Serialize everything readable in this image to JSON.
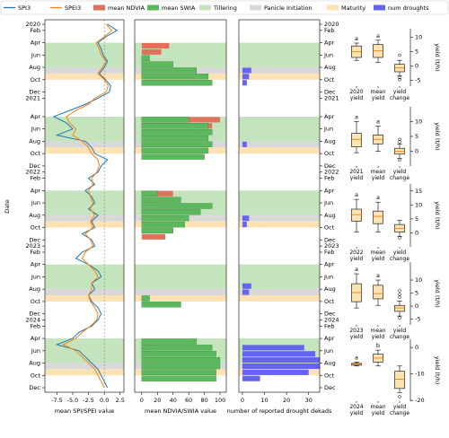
{
  "stages": [
    {
      "name": "Tillering",
      "color": "#c4e4bd",
      "periods": [
        [
          "2020-04",
          "2020-08"
        ],
        [
          "2021-04",
          "2021-08"
        ],
        [
          "2022-04",
          "2022-08"
        ],
        [
          "2023-04",
          "2023-08"
        ],
        [
          "2024-04",
          "2024-08"
        ]
      ]
    },
    {
      "name": "Panicle Initiation",
      "color": "#d8d8d8",
      "periods": [
        [
          "2020-08",
          "2020-09"
        ],
        [
          "2021-08",
          "2021-09"
        ],
        [
          "2022-08",
          "2022-09"
        ],
        [
          "2023-08",
          "2023-09"
        ],
        [
          "2024-08",
          "2024-09"
        ]
      ]
    },
    {
      "name": "Maturity",
      "color": "#fde2b3",
      "periods": [
        [
          "2020-09",
          "2020-10"
        ],
        [
          "2021-09",
          "2021-10"
        ],
        [
          "2022-09",
          "2022-10"
        ],
        [
          "2023-09",
          "2023-10"
        ],
        [
          "2024-09",
          "2024-10"
        ]
      ]
    }
  ],
  "chart_data": [
    {
      "type": "line",
      "x_label": "mean SPI/SPEI value",
      "y_label": "Date",
      "dates": [
        "2020-01",
        "2020-02",
        "2020-03",
        "2020-04",
        "2020-05",
        "2020-06",
        "2020-07",
        "2020-08",
        "2020-09",
        "2020-10",
        "2020-11",
        "2020-12",
        "2021-01",
        "2021-02",
        "2021-03",
        "2021-04",
        "2021-05",
        "2021-06",
        "2021-07",
        "2021-08",
        "2021-09",
        "2021-10",
        "2021-11",
        "2021-12",
        "2022-01",
        "2022-02",
        "2022-03",
        "2022-04",
        "2022-05",
        "2022-06",
        "2022-07",
        "2022-08",
        "2022-09",
        "2022-10",
        "2022-11",
        "2022-12",
        "2023-01",
        "2023-02",
        "2023-03",
        "2023-04",
        "2023-05",
        "2023-06",
        "2023-07",
        "2023-08",
        "2023-09",
        "2023-10",
        "2023-11",
        "2023-12",
        "2024-01",
        "2024-02",
        "2024-03",
        "2024-04",
        "2024-05",
        "2024-06",
        "2024-07",
        "2024-08",
        "2024-09",
        "2024-10",
        "2024-11",
        "2024-12"
      ],
      "series": [
        {
          "name": "SPI3",
          "color": "#1f77b4",
          "values": [
            0.5,
            2.0,
            0.3,
            -1.0,
            -0.5,
            -0.2,
            0.5,
            0,
            -0.8,
            0.2,
            1.0,
            0.8,
            -1.0,
            -3.0,
            -5.5,
            -8.0,
            -6.0,
            -5.0,
            -7.5,
            -3.0,
            -2.0,
            -1.5,
            0.5,
            -0.5,
            -1.0,
            -2.5,
            -1.5,
            -3.0,
            -2.0,
            -1.5,
            -2.5,
            -1.0,
            -2.0,
            -1.5,
            -3.5,
            -2.0,
            -1.5,
            -3.5,
            -4.5,
            -2.5,
            -1.0,
            -0.5,
            -2.0,
            -1.5,
            -2.5,
            -2.0,
            -1.0,
            -0.5,
            -1.0,
            -2.0,
            -4.0,
            -5.0,
            -7.5,
            -4.0,
            -3.0,
            -2.0,
            -1.0,
            -0.5,
            0.0,
            0.5
          ]
        },
        {
          "name": "SPEI3",
          "color": "#ff7f0e",
          "values": [
            0.3,
            1.2,
            0.0,
            -1.3,
            -0.8,
            -0.5,
            0.3,
            -0.3,
            -1.0,
            0.0,
            0.6,
            0.3,
            -1.5,
            -2.5,
            -4.5,
            -6.0,
            -5.5,
            -4.5,
            -5.0,
            -3.5,
            -2.5,
            -2.0,
            -1.0,
            -0.8,
            -1.2,
            -2.0,
            -1.8,
            -2.5,
            -2.2,
            -1.8,
            -2.2,
            -1.5,
            -2.2,
            -1.8,
            -3.0,
            -2.2,
            -1.8,
            -3.0,
            -3.5,
            -2.5,
            -1.5,
            -1.0,
            -2.0,
            -2.0,
            -2.5,
            -2.2,
            -1.5,
            -1.0,
            -1.2,
            -2.2,
            -3.5,
            -4.5,
            -6.5,
            -4.5,
            -3.5,
            -2.5,
            -1.5,
            -1.0,
            -0.5,
            0.0
          ]
        }
      ],
      "reference_x": 0,
      "xlim": [
        -9.4,
        3.1
      ],
      "xticks": [
        -7.5,
        {
          "value": -5,
          "label": "-5.0"
        },
        -2.5,
        {
          "value": 0,
          "label": "0.0"
        },
        2.5
      ],
      "ylim": [
        "2020-01",
        "2024-12"
      ],
      "yticks": [
        {
          "value": "2020-01",
          "label": "2020"
        },
        {
          "value": "2020-02",
          "label": "Feb"
        },
        {
          "value": "2020-04",
          "label": "Apr"
        },
        {
          "value": "2020-06",
          "label": "Jun"
        },
        {
          "value": "2020-08",
          "label": "Aug"
        },
        {
          "value": "2020-10",
          "label": "Oct"
        },
        {
          "value": "2020-12",
          "label": "Dec"
        },
        {
          "value": "2021-01",
          "label": "2021"
        },
        {
          "value": "2021-04",
          "label": "Apr"
        },
        {
          "value": "2021-06",
          "label": "Jun"
        },
        {
          "value": "2021-08",
          "label": "Aug"
        },
        {
          "value": "2021-10",
          "label": "Oct"
        },
        {
          "value": "2021-12",
          "label": "Dec"
        },
        {
          "value": "2022-01",
          "label": "2022"
        },
        {
          "value": "2022-02",
          "label": "Feb"
        },
        {
          "value": "2022-04",
          "label": "Apr"
        },
        {
          "value": "2022-06",
          "label": "Jun"
        },
        {
          "value": "2022-08",
          "label": "Aug"
        },
        {
          "value": "2022-10",
          "label": "Oct"
        },
        {
          "value": "2022-12",
          "label": "Dec"
        },
        {
          "value": "2023-01",
          "label": "2023"
        },
        {
          "value": "2023-02",
          "label": "Feb"
        },
        {
          "value": "2023-04",
          "label": "Apr"
        },
        {
          "value": "2023-06",
          "label": "Jun"
        },
        {
          "value": "2023-08",
          "label": "Aug"
        },
        {
          "value": "2023-10",
          "label": "Oct"
        },
        {
          "value": "2023-12",
          "label": "Dec"
        },
        {
          "value": "2024-01",
          "label": "2024"
        },
        {
          "value": "2024-02",
          "label": "Feb"
        },
        {
          "value": "2024-04",
          "label": "Apr"
        },
        {
          "value": "2024-06",
          "label": "Jun"
        },
        {
          "value": "2024-08",
          "label": "Aug"
        },
        {
          "value": "2024-10",
          "label": "Oct"
        },
        {
          "value": "2024-12",
          "label": "Dec"
        }
      ]
    },
    {
      "type": "barh",
      "x_label": "mean NDVIA/SWIA value",
      "series": [
        {
          "name": "mean NDVIA",
          "color": "#e0715c",
          "values": [
            null,
            null,
            null,
            35,
            25,
            10,
            null,
            null,
            null,
            null,
            null,
            null,
            null,
            null,
            null,
            100,
            90,
            70,
            null,
            null,
            null,
            null,
            null,
            null,
            null,
            null,
            null,
            40,
            25,
            15,
            40,
            20,
            10,
            40,
            30,
            null,
            null,
            null,
            null,
            null,
            null,
            null,
            null,
            null,
            null,
            null,
            null,
            null,
            null,
            null,
            null,
            10,
            20,
            10,
            null,
            null,
            null,
            null,
            null,
            null
          ]
        },
        {
          "name": "mean SWIA",
          "color": "#5cb85c",
          "values": [
            null,
            null,
            null,
            null,
            null,
            10,
            40,
            70,
            85,
            90,
            null,
            null,
            null,
            null,
            null,
            60,
            85,
            90,
            85,
            90,
            85,
            80,
            null,
            null,
            null,
            null,
            null,
            20,
            50,
            90,
            75,
            60,
            55,
            40,
            null,
            null,
            null,
            null,
            null,
            null,
            null,
            null,
            null,
            null,
            10,
            50,
            null,
            null,
            null,
            null,
            null,
            70,
            90,
            95,
            100,
            100,
            95,
            95,
            null,
            null
          ]
        }
      ],
      "xlim": [
        -9,
        108
      ],
      "xticks": [
        0,
        20,
        40,
        60,
        80,
        100
      ]
    },
    {
      "type": "barh",
      "x_label": "number of reported drought dekads",
      "series": [
        {
          "name": "num droughts",
          "color": "#6464f0",
          "values": [
            null,
            null,
            null,
            null,
            null,
            null,
            null,
            4,
            3,
            2,
            null,
            null,
            null,
            null,
            null,
            null,
            null,
            null,
            null,
            2,
            null,
            null,
            null,
            null,
            null,
            null,
            null,
            null,
            null,
            null,
            null,
            3,
            2,
            null,
            null,
            null,
            null,
            null,
            null,
            null,
            null,
            null,
            4,
            3,
            null,
            null,
            null,
            null,
            null,
            null,
            null,
            null,
            28,
            33,
            35,
            35,
            30,
            8,
            null,
            null
          ]
        }
      ],
      "xlim": [
        -1.6,
        35
      ],
      "xticks": [
        0,
        10,
        20,
        30
      ]
    },
    {
      "type": "box",
      "y_label": "yield (t/h)",
      "categories": [
        "2020 yield",
        "mean yield",
        "yield change"
      ],
      "group_letters": [
        "a",
        "a",
        null
      ],
      "boxes": [
        {
          "min": 2,
          "q1": 3,
          "median": 5,
          "q3": 7,
          "max": 8,
          "fliers": []
        },
        {
          "min": 1.3,
          "q1": 3,
          "median": 5.3,
          "q3": 7.5,
          "max": 9,
          "fliers": []
        },
        {
          "min": -3.4,
          "q1": -2,
          "median": -0.6,
          "q3": 0.6,
          "max": 2,
          "fliers": [
            3.8,
            -4,
            -4.7
          ]
        }
      ],
      "ylim": [
        -7,
        13
      ],
      "yticks": [
        -5,
        0,
        5,
        10
      ]
    },
    {
      "type": "box",
      "y_label": "yield (t/h)",
      "categories": [
        "2021 yield",
        "mean yield",
        "yield change"
      ],
      "group_letters": [
        "a",
        "a",
        null
      ],
      "boxes": [
        {
          "min": -0.5,
          "q1": 1.5,
          "median": 4,
          "q3": 6,
          "max": 10,
          "fliers": []
        },
        {
          "min": 0,
          "q1": 2.5,
          "median": 4,
          "q3": 5.5,
          "max": 8.5,
          "fliers": []
        },
        {
          "min": -2.5,
          "q1": -1,
          "median": 0,
          "q3": 1,
          "max": 2.5,
          "fliers": [
            4,
            3.2,
            -3
          ]
        }
      ],
      "ylim": [
        -5,
        15
      ],
      "yticks": [
        0,
        5,
        10
      ]
    },
    {
      "type": "box",
      "y_label": "yield (t/h)",
      "categories": [
        "2022 yield",
        "mean yield",
        "yield change"
      ],
      "group_letters": [
        "a",
        "a",
        null
      ],
      "boxes": [
        {
          "min": 0.3,
          "q1": 4.2,
          "median": 6.5,
          "q3": 8.5,
          "max": 12,
          "fliers": []
        },
        {
          "min": 0.3,
          "q1": 3.3,
          "median": 5.9,
          "q3": 7.8,
          "max": 11,
          "fliers": []
        },
        {
          "min": -1.3,
          "q1": 0.3,
          "median": 1.6,
          "q3": 3,
          "max": 4.5,
          "fliers": [
            -1.8
          ]
        }
      ],
      "ylim": [
        -5,
        17.5
      ],
      "yticks": [
        0,
        5,
        10,
        15
      ]
    },
    {
      "type": "box",
      "y_label": "yield (t/h)",
      "categories": [
        "2023 yield",
        "mean yield",
        "yield change"
      ],
      "group_letters": [
        "a",
        "a",
        null
      ],
      "boxes": [
        {
          "min": -0.7,
          "q1": 1.7,
          "median": 5.2,
          "q3": 8.6,
          "max": 12.4,
          "fliers": []
        },
        {
          "min": 0.3,
          "q1": 2.8,
          "median": 4.8,
          "q3": 8,
          "max": 10,
          "fliers": []
        },
        {
          "min": -3.8,
          "q1": -2,
          "median": -0.7,
          "q3": 0.3,
          "max": 2,
          "fliers": [
            5.9,
            4.5,
            3.4,
            -4.5
          ]
        }
      ],
      "ylim": [
        -7.2,
        16.9
      ],
      "yticks": [
        -5,
        0,
        5,
        10
      ]
    },
    {
      "type": "box",
      "y_label": "yield (t/h)",
      "categories": [
        "2024 yield",
        "mean yield",
        "yield change"
      ],
      "group_letters": [
        "a",
        "b",
        null
      ],
      "boxes": [
        {
          "min": -7,
          "q1": -6.7,
          "median": -6.3,
          "q3": -6,
          "max": -5.5,
          "fliers": []
        },
        {
          "min": -7,
          "q1": -5.5,
          "median": -4,
          "q3": -2.5,
          "max": -1,
          "fliers": []
        },
        {
          "min": -17,
          "q1": -15.5,
          "median": -12,
          "q3": -9,
          "max": -7,
          "fliers": [
            -18.6
          ]
        }
      ],
      "ylim": [
        -20.3,
        3.1
      ],
      "yticks": [
        -20,
        -10,
        0
      ]
    }
  ]
}
